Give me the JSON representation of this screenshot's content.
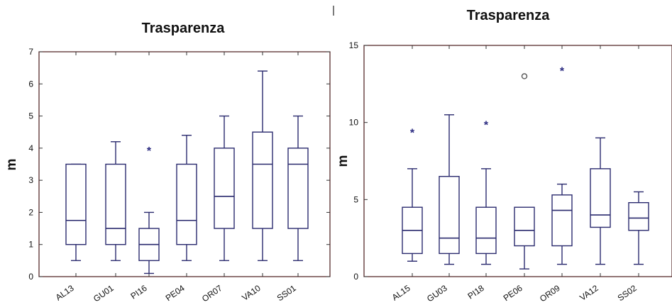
{
  "chart_data": [
    {
      "type": "box",
      "title": "Trasparenza",
      "ylabel": "m",
      "ylim": [
        0,
        7
      ],
      "yticks": [
        0,
        1,
        2,
        3,
        4,
        5,
        6,
        7
      ],
      "categories": [
        "AL13",
        "GU01",
        "PI16",
        "PE04",
        "OR07",
        "VA10",
        "SS01"
      ],
      "boxes": [
        {
          "whisker_low": 0.5,
          "q1": 1.0,
          "median": 1.75,
          "q3": 3.5,
          "whisker_high": 3.5,
          "outliers": []
        },
        {
          "whisker_low": 0.5,
          "q1": 1.0,
          "median": 1.5,
          "q3": 3.5,
          "whisker_high": 4.2,
          "outliers": []
        },
        {
          "whisker_low": 0.1,
          "q1": 0.5,
          "median": 1.0,
          "q3": 1.5,
          "whisker_high": 2.0,
          "outliers": [
            {
              "y": 4.0,
              "marker": "star"
            }
          ]
        },
        {
          "whisker_low": 0.5,
          "q1": 1.0,
          "median": 1.75,
          "q3": 3.5,
          "whisker_high": 4.4,
          "outliers": []
        },
        {
          "whisker_low": 0.5,
          "q1": 1.5,
          "median": 2.5,
          "q3": 4.0,
          "whisker_high": 5.0,
          "outliers": []
        },
        {
          "whisker_low": 0.5,
          "q1": 1.5,
          "median": 3.5,
          "q3": 4.5,
          "whisker_high": 6.4,
          "outliers": []
        },
        {
          "whisker_low": 0.5,
          "q1": 1.5,
          "median": 3.5,
          "q3": 4.0,
          "whisker_high": 5.0,
          "outliers": []
        }
      ]
    },
    {
      "type": "box",
      "title": "Trasparenza",
      "ylabel": "m",
      "ylim": [
        0,
        15
      ],
      "yticks": [
        0,
        5,
        10,
        15
      ],
      "categories": [
        "AL15",
        "GU03",
        "PI18",
        "PE06",
        "OR09",
        "VA12",
        "SS02"
      ],
      "boxes": [
        {
          "whisker_low": 1.0,
          "q1": 1.5,
          "median": 3.0,
          "q3": 4.5,
          "whisker_high": 7.0,
          "outliers": [
            {
              "y": 9.5,
              "marker": "star"
            }
          ]
        },
        {
          "whisker_low": 0.8,
          "q1": 1.5,
          "median": 2.5,
          "q3": 6.5,
          "whisker_high": 10.5,
          "outliers": []
        },
        {
          "whisker_low": 0.8,
          "q1": 1.5,
          "median": 2.5,
          "q3": 4.5,
          "whisker_high": 7.0,
          "outliers": [
            {
              "y": 10.0,
              "marker": "star"
            }
          ]
        },
        {
          "whisker_low": 0.5,
          "q1": 2.0,
          "median": 3.0,
          "q3": 4.5,
          "whisker_high": 4.5,
          "outliers": [
            {
              "y": 13.0,
              "marker": "circle"
            }
          ]
        },
        {
          "whisker_low": 0.8,
          "q1": 2.0,
          "median": 4.3,
          "q3": 5.3,
          "whisker_high": 6.0,
          "outliers": [
            {
              "y": 13.5,
              "marker": "star"
            }
          ]
        },
        {
          "whisker_low": 0.8,
          "q1": 3.2,
          "median": 4.0,
          "q3": 7.0,
          "whisker_high": 9.0,
          "outliers": []
        },
        {
          "whisker_low": 0.8,
          "q1": 3.0,
          "median": 3.8,
          "q3": 4.8,
          "whisker_high": 5.5,
          "outliers": []
        }
      ]
    }
  ]
}
